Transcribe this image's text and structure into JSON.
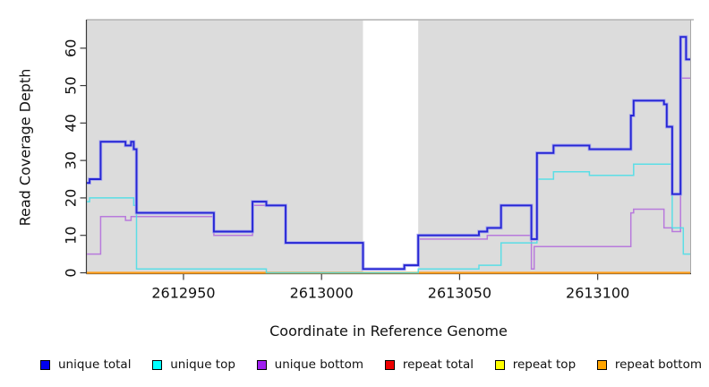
{
  "xlabel": "Coordinate in Reference Genome",
  "ylabel": "Read Coverage Depth",
  "chart_data": {
    "type": "line",
    "subtype": "step",
    "title": "",
    "xlabel": "Coordinate in Reference Genome",
    "ylabel": "Read Coverage Depth",
    "grid": false,
    "plot_bg_color": "#DCDCDC",
    "axis_color": "#3a3a3a",
    "border_color": "#A8A8A8",
    "x_axis": {
      "range": [
        2612915,
        2613133.5
      ],
      "ticks": [
        2612950,
        2613000,
        2613050,
        2613100
      ]
    },
    "y_axis": {
      "range": [
        0,
        67.6
      ],
      "ticks": [
        0,
        10,
        20,
        30,
        40,
        50,
        60
      ]
    },
    "masked_region": {
      "from": 2613015,
      "to": 2613035,
      "color": "#FFFFFF"
    },
    "series": [
      {
        "name": "unique total",
        "color": "#2626D4",
        "halo_color": "#A6A6F0",
        "width": 1.9,
        "opacity": 1,
        "z": 6,
        "steps": [
          [
            2612915,
            24
          ],
          [
            2612916,
            25
          ],
          [
            2612920,
            35
          ],
          [
            2612929,
            34
          ],
          [
            2612931,
            35
          ],
          [
            2612932,
            33
          ],
          [
            2612933,
            16
          ],
          [
            2612961,
            11
          ],
          [
            2612975,
            19
          ],
          [
            2612980,
            18
          ],
          [
            2612987,
            8
          ],
          [
            2613015,
            1
          ],
          [
            2613030,
            2
          ],
          [
            2613035,
            10
          ],
          [
            2613057,
            11
          ],
          [
            2613060,
            12
          ],
          [
            2613065,
            18
          ],
          [
            2613076,
            9
          ],
          [
            2613078,
            32
          ],
          [
            2613084,
            34
          ],
          [
            2613097,
            33
          ],
          [
            2613112,
            42
          ],
          [
            2613113,
            46
          ],
          [
            2613124,
            45
          ],
          [
            2613125,
            39
          ],
          [
            2613127,
            21
          ],
          [
            2613130,
            63
          ],
          [
            2613132,
            57
          ]
        ],
        "end": 2613133.5
      },
      {
        "name": "unique top",
        "color": "#44DEE8",
        "width": 1.5,
        "opacity": 0.85,
        "z": 5,
        "steps": [
          [
            2612915,
            19
          ],
          [
            2612916,
            20
          ],
          [
            2612932,
            18
          ],
          [
            2612933,
            1
          ],
          [
            2612980,
            0
          ],
          [
            2613035,
            1
          ],
          [
            2613057,
            2
          ],
          [
            2613065,
            8
          ],
          [
            2613078,
            25
          ],
          [
            2613084,
            27
          ],
          [
            2613097,
            26
          ],
          [
            2613113,
            29
          ],
          [
            2613127,
            12
          ],
          [
            2613131,
            5
          ]
        ],
        "end": 2613133.5
      },
      {
        "name": "unique bottom",
        "color": "#B87ADC",
        "width": 1.5,
        "opacity": 1,
        "z": 4,
        "steps": [
          [
            2612915,
            5
          ],
          [
            2612920,
            15
          ],
          [
            2612929,
            14
          ],
          [
            2612931,
            15
          ],
          [
            2612961,
            10
          ],
          [
            2612975,
            18
          ],
          [
            2612987,
            8
          ],
          [
            2613015,
            1
          ],
          [
            2613030,
            2
          ],
          [
            2613035,
            9
          ],
          [
            2613060,
            10
          ],
          [
            2613076,
            1
          ],
          [
            2613077,
            7
          ],
          [
            2613112,
            16
          ],
          [
            2613113,
            17
          ],
          [
            2613124,
            12
          ],
          [
            2613127,
            11
          ],
          [
            2613130,
            52
          ]
        ],
        "end": 2613133.5
      },
      {
        "name": "repeat total",
        "color": "#DC1414",
        "width": 1.5,
        "opacity": 1,
        "z": 1,
        "steps": [
          [
            2612915,
            0
          ]
        ],
        "end": 2613133.5
      },
      {
        "name": "repeat top",
        "color": "#F0F000",
        "width": 1.5,
        "opacity": 1,
        "z": 2,
        "steps": [
          [
            2612915,
            0
          ]
        ],
        "end": 2613133.5
      },
      {
        "name": "repeat bottom",
        "color": "#FF9E1B",
        "width": 2.2,
        "opacity": 1,
        "z": 3,
        "steps": [
          [
            2612915,
            0
          ]
        ],
        "end": 2613133.5
      }
    ]
  },
  "legend": {
    "items": [
      {
        "label": "unique total",
        "color": "#0000EE"
      },
      {
        "label": "unique top",
        "color": "#00FFFF"
      },
      {
        "label": "unique bottom",
        "color": "#A020F0"
      },
      {
        "label": "repeat total",
        "color": "#EE0000"
      },
      {
        "label": "repeat top",
        "color": "#FFFF00"
      },
      {
        "label": "repeat bottom",
        "color": "#FFA500"
      }
    ]
  }
}
